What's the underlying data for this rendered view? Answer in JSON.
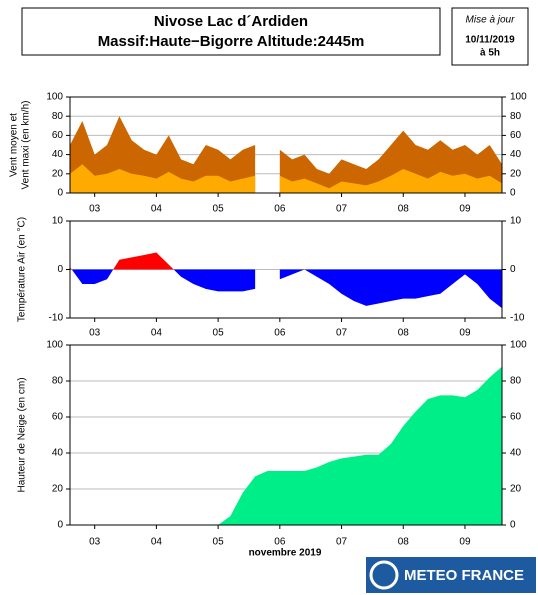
{
  "header": {
    "title_line1": "Nivose Lac d´Ardiden",
    "title_line2": "Massif:Haute−Bigorre Altitude:2445m"
  },
  "update": {
    "label": "Mise à jour",
    "date": "10/11/2019",
    "time": "à 5h"
  },
  "logo": "METEO FRANCE",
  "chart_data": [
    {
      "type": "area",
      "y_label": [
        "Vent moyen et",
        "Vent maxi (en km/h)"
      ],
      "x": [
        2.6,
        2.8,
        3.0,
        3.2,
        3.4,
        3.6,
        3.8,
        4.0,
        4.2,
        4.4,
        4.6,
        4.8,
        5.0,
        5.2,
        5.4,
        5.6,
        5.8,
        6.0,
        6.2,
        6.4,
        6.6,
        6.8,
        7.0,
        7.2,
        7.4,
        7.6,
        7.8,
        8.0,
        8.2,
        8.4,
        8.6,
        8.8,
        9.0,
        9.2,
        9.4,
        9.6
      ],
      "xlim": [
        2.6,
        9.6
      ],
      "xticks": [
        {
          "value": 3,
          "label": "03"
        },
        {
          "value": 4,
          "label": "04"
        },
        {
          "value": 5,
          "label": "05"
        },
        {
          "value": 6,
          "label": "06"
        },
        {
          "value": 7,
          "label": "07"
        },
        {
          "value": 8,
          "label": "08"
        },
        {
          "value": 9,
          "label": "09"
        }
      ],
      "ylim": [
        0,
        100
      ],
      "yticks": [
        0,
        20,
        40,
        60,
        80,
        100
      ],
      "grid": true,
      "series": [
        {
          "name": "Vent maxi",
          "color": "#cc6600",
          "values": [
            50,
            75,
            40,
            50,
            80,
            55,
            45,
            40,
            60,
            35,
            30,
            50,
            45,
            35,
            45,
            50,
            null,
            45,
            35,
            40,
            25,
            20,
            35,
            30,
            25,
            35,
            50,
            65,
            50,
            45,
            55,
            45,
            50,
            40,
            50,
            30
          ]
        },
        {
          "name": "Vent moyen",
          "color": "#ffaa00",
          "values": [
            20,
            30,
            18,
            20,
            25,
            20,
            18,
            15,
            22,
            15,
            12,
            18,
            18,
            12,
            15,
            18,
            null,
            18,
            12,
            15,
            10,
            5,
            12,
            10,
            8,
            12,
            18,
            25,
            20,
            15,
            22,
            18,
            20,
            15,
            18,
            10
          ]
        }
      ]
    },
    {
      "type": "area",
      "y_label": [
        "Température Air (en °C)"
      ],
      "x": [
        2.6,
        2.8,
        3.0,
        3.2,
        3.4,
        3.6,
        3.8,
        4.0,
        4.2,
        4.4,
        4.6,
        4.8,
        5.0,
        5.2,
        5.4,
        5.6,
        5.8,
        6.0,
        6.2,
        6.4,
        6.6,
        6.8,
        7.0,
        7.2,
        7.4,
        7.6,
        7.8,
        8.0,
        8.2,
        8.4,
        8.6,
        8.8,
        9.0,
        9.2,
        9.4,
        9.6
      ],
      "xlim": [
        2.6,
        9.6
      ],
      "xticks": [
        {
          "value": 3,
          "label": "03"
        },
        {
          "value": 4,
          "label": "04"
        },
        {
          "value": 5,
          "label": "05"
        },
        {
          "value": 6,
          "label": "06"
        },
        {
          "value": 7,
          "label": "07"
        },
        {
          "value": 8,
          "label": "08"
        },
        {
          "value": 9,
          "label": "09"
        }
      ],
      "ylim": [
        -10,
        10
      ],
      "yticks": [
        -10,
        0,
        10
      ],
      "grid": true,
      "series": [
        {
          "name": "Température",
          "color": "#0000ff",
          "positive_color": "#ff0000",
          "values": [
            0.5,
            -3,
            -3,
            -2,
            2,
            2.5,
            3,
            3.5,
            1,
            -1.5,
            -3,
            -4,
            -4.5,
            -4.5,
            -4.5,
            -4,
            null,
            -2,
            -1,
            0,
            -1.5,
            -3,
            -5,
            -6.5,
            -7.5,
            -7,
            -6.5,
            -6,
            -6,
            -5.5,
            -5,
            -3,
            -1,
            -3,
            -6,
            -8
          ]
        }
      ]
    },
    {
      "type": "area",
      "y_label": [
        "Hauteur de Neige (en cm)"
      ],
      "x_label": "novembre 2019",
      "x": [
        2.6,
        2.8,
        3.0,
        3.2,
        3.4,
        3.6,
        3.8,
        4.0,
        4.2,
        4.4,
        4.6,
        4.8,
        5.0,
        5.2,
        5.4,
        5.6,
        5.8,
        6.0,
        6.2,
        6.4,
        6.6,
        6.8,
        7.0,
        7.2,
        7.4,
        7.6,
        7.8,
        8.0,
        8.2,
        8.4,
        8.6,
        8.8,
        9.0,
        9.2,
        9.4,
        9.6
      ],
      "xlim": [
        2.6,
        9.6
      ],
      "xticks": [
        {
          "value": 3,
          "label": "03"
        },
        {
          "value": 4,
          "label": "04"
        },
        {
          "value": 5,
          "label": "05"
        },
        {
          "value": 6,
          "label": "06"
        },
        {
          "value": 7,
          "label": "07"
        },
        {
          "value": 8,
          "label": "08"
        },
        {
          "value": 9,
          "label": "09"
        }
      ],
      "ylim": [
        0,
        100
      ],
      "yticks": [
        0,
        20,
        40,
        60,
        80,
        100
      ],
      "grid": true,
      "series": [
        {
          "name": "Hauteur de neige",
          "color": "#00ee88",
          "values": [
            0,
            0,
            0,
            0,
            0,
            0,
            0,
            0,
            0,
            0,
            0,
            0,
            0,
            5,
            18,
            27,
            30,
            30,
            30,
            30,
            32,
            35,
            37,
            38,
            39,
            39,
            45,
            55,
            63,
            70,
            72,
            72,
            71,
            75,
            82,
            88
          ]
        }
      ]
    }
  ]
}
